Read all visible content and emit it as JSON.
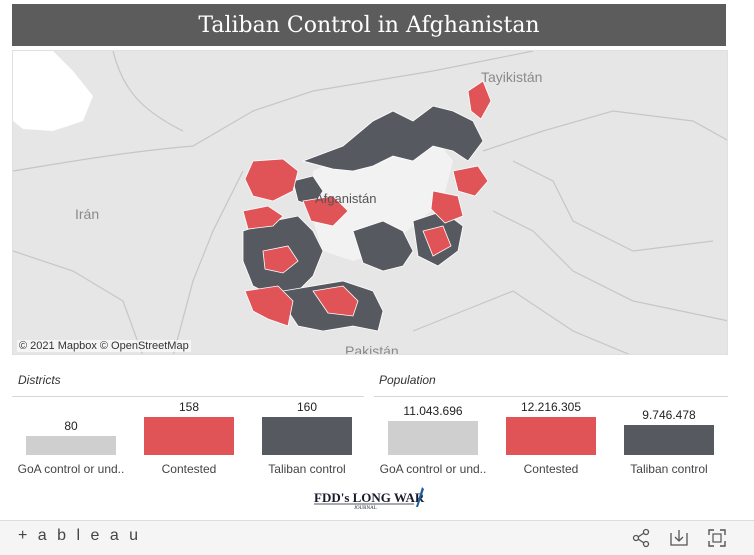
{
  "header": {
    "title": "Taliban Control in Afghanistan"
  },
  "map": {
    "labels": {
      "tajikistan": "Tayikistán",
      "iran": "Irán",
      "afghanistan": "Afganistán",
      "pakistan": "Pakistán"
    },
    "attribution": "© 2021 Mapbox © OpenStreetMap",
    "legend_colors": {
      "goa": "#cfcfcf",
      "contested": "#e05458",
      "taliban": "#575961"
    }
  },
  "chart_data": [
    {
      "type": "bar",
      "title": "Districts",
      "categories": [
        "GoA control or und..",
        "Contested",
        "Taliban control"
      ],
      "values": [
        80,
        158,
        160
      ],
      "value_labels": [
        "80",
        "158",
        "160"
      ],
      "colors": [
        "#cfcfcf",
        "#e05458",
        "#575961"
      ],
      "ylim": [
        0,
        160
      ]
    },
    {
      "type": "bar",
      "title": "Population",
      "categories": [
        "GoA control or und..",
        "Contested",
        "Taliban control"
      ],
      "values": [
        11043696,
        12216305,
        9746478
      ],
      "value_labels": [
        "11.043.696",
        "12.216.305",
        "9.746.478"
      ],
      "colors": [
        "#cfcfcf",
        "#e05458",
        "#575961"
      ],
      "ylim": [
        0,
        12216305
      ]
    }
  ],
  "footer": {
    "logo_text": "FDD's LONG WAR",
    "logo_subtext": "JOURNAL"
  },
  "toolbar": {
    "brand": "+ a b l e a u",
    "icons": [
      "share-icon",
      "download-icon",
      "fullscreen-icon"
    ]
  }
}
